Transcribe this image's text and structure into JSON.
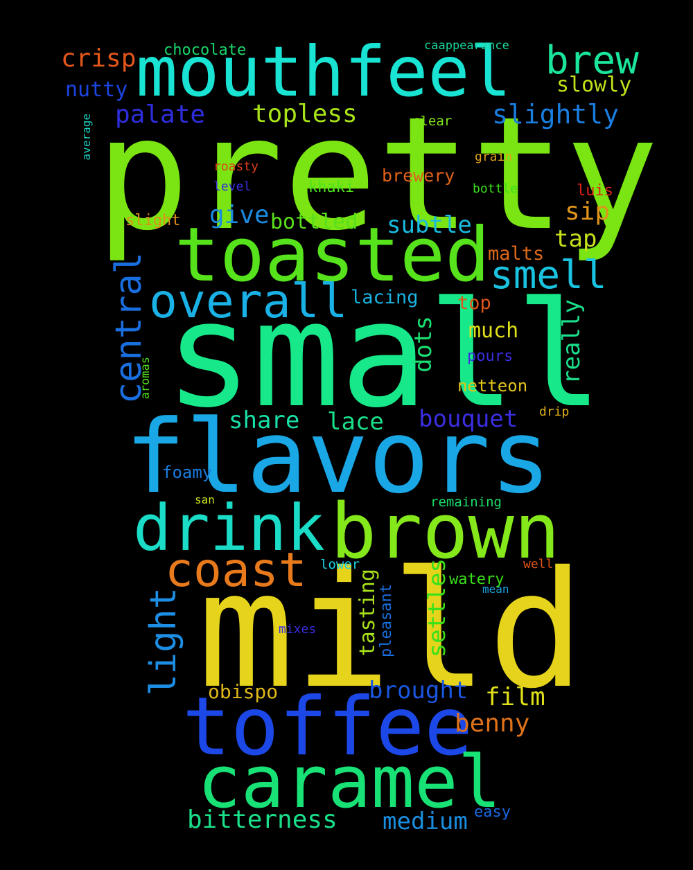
{
  "background": "#000000",
  "words": [
    {
      "text": "pretty",
      "color": "#7be513"
    },
    {
      "text": "small",
      "color": "#17e88a"
    },
    {
      "text": "mild",
      "color": "#e6d41c"
    },
    {
      "text": "flavors",
      "color": "#1aa7e6"
    },
    {
      "text": "mouthfeel",
      "color": "#19e3d2"
    },
    {
      "text": "toasted",
      "color": "#57e31b"
    },
    {
      "text": "toffee",
      "color": "#1c48e8"
    },
    {
      "text": "caramel",
      "color": "#18e276"
    },
    {
      "text": "drink",
      "color": "#1adcc7"
    },
    {
      "text": "brown",
      "color": "#84e81a"
    },
    {
      "text": "coast",
      "color": "#e87a1c"
    },
    {
      "text": "overall",
      "color": "#1ab1e6"
    },
    {
      "text": "brew",
      "color": "#1ae59b"
    },
    {
      "text": "smell",
      "color": "#1ac3e0"
    },
    {
      "text": "central",
      "color": "#1a6fe0"
    },
    {
      "text": "light",
      "color": "#1d8ee3"
    },
    {
      "text": "crisp",
      "color": "#e5561b"
    },
    {
      "text": "chocolate",
      "color": "#1ad66b"
    },
    {
      "text": "caappearance",
      "color": "#1ad69d"
    },
    {
      "text": "nutty",
      "color": "#1c44e0"
    },
    {
      "text": "slowly",
      "color": "#c0e31a"
    },
    {
      "text": "palate",
      "color": "#2e2ee0"
    },
    {
      "text": "topless",
      "color": "#a8e31a"
    },
    {
      "text": "slightly",
      "color": "#1a7ee0"
    },
    {
      "text": "clear",
      "color": "#7fe31a"
    },
    {
      "text": "average",
      "color": "#1ad1c1"
    },
    {
      "text": "roasty",
      "color": "#e0401a"
    },
    {
      "text": "grain",
      "color": "#e0a31a"
    },
    {
      "text": "level",
      "color": "#3a2ee0"
    },
    {
      "text": "khaki",
      "color": "#4fe31a"
    },
    {
      "text": "brewery",
      "color": "#e0621a"
    },
    {
      "text": "bottle",
      "color": "#3ae01a"
    },
    {
      "text": "luis",
      "color": "#e0221a"
    },
    {
      "text": "give",
      "color": "#1a8be0"
    },
    {
      "text": "sip",
      "color": "#e0941a"
    },
    {
      "text": "slight",
      "color": "#e0901a"
    },
    {
      "text": "bottled",
      "color": "#5ae01a"
    },
    {
      "text": "subtle",
      "color": "#1abbe0"
    },
    {
      "text": "tap",
      "color": "#c7e01a"
    },
    {
      "text": "malts",
      "color": "#e06a1a"
    },
    {
      "text": "lacing",
      "color": "#1ab2e0"
    },
    {
      "text": "top",
      "color": "#e0541a"
    },
    {
      "text": "really",
      "color": "#1ae08c"
    },
    {
      "text": "dots",
      "color": "#1ae072"
    },
    {
      "text": "much",
      "color": "#e0e01a"
    },
    {
      "text": "aromas",
      "color": "#54e01a"
    },
    {
      "text": "pours",
      "color": "#3a2ee0"
    },
    {
      "text": "netteon",
      "color": "#e0c41a"
    },
    {
      "text": "share",
      "color": "#1ae0a8"
    },
    {
      "text": "lace",
      "color": "#1ae08a"
    },
    {
      "text": "bouquet",
      "color": "#3a2ee0"
    },
    {
      "text": "drip",
      "color": "#e0b21a"
    },
    {
      "text": "foamy",
      "color": "#1a7ee0"
    },
    {
      "text": "san",
      "color": "#c7e01a"
    },
    {
      "text": "remaining",
      "color": "#1ae06a"
    },
    {
      "text": "lower",
      "color": "#1ad1e0"
    },
    {
      "text": "well",
      "color": "#e0541a"
    },
    {
      "text": "watery",
      "color": "#3ae01a"
    },
    {
      "text": "mean",
      "color": "#1aa4e0"
    },
    {
      "text": "tasting",
      "color": "#a8e01a"
    },
    {
      "text": "pleasant",
      "color": "#1a70e0"
    },
    {
      "text": "settles",
      "color": "#3ae01a"
    },
    {
      "text": "mixes",
      "color": "#3a2ee0"
    },
    {
      "text": "obispo",
      "color": "#e0b81a"
    },
    {
      "text": "brought",
      "color": "#1a56e0"
    },
    {
      "text": "film",
      "color": "#e0e01a"
    },
    {
      "text": "benny",
      "color": "#e0721a"
    },
    {
      "text": "bitterness",
      "color": "#1ae08a"
    },
    {
      "text": "medium",
      "color": "#1a8ee0"
    },
    {
      "text": "easy",
      "color": "#1a6ae0"
    }
  ]
}
